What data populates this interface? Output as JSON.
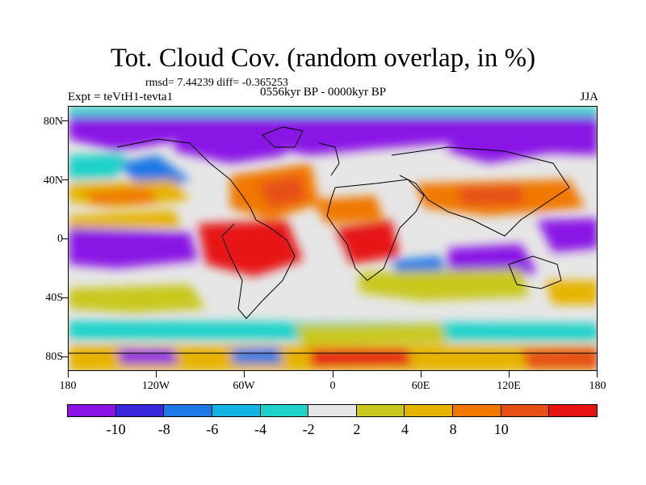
{
  "title": "Tot. Cloud Cov. (random overlap, in %)",
  "stats_line": "rmsd= 7.44239 diff= -0.365253",
  "period": "0556kyr BP - 0000kyr BP",
  "experiment": "Expt = teVtH1-tevta1",
  "season": "JJA",
  "lat_labels": [
    "80N",
    "40N",
    "0",
    "40S",
    "80S"
  ],
  "lon_labels": [
    "180",
    "120W",
    "60W",
    "0",
    "60E",
    "120E",
    "180"
  ],
  "colorbar": {
    "labels": [
      "-10",
      "-8",
      "-6",
      "-4",
      "-2",
      "2",
      "4",
      "8",
      "10"
    ],
    "colors": [
      "#8a14e6",
      "#3a28dc",
      "#1e78e6",
      "#12b4e6",
      "#1ed2c8",
      "#e6e6e6",
      "#c8c81e",
      "#e6b400",
      "#f07800",
      "#e65014",
      "#e61414"
    ]
  }
}
